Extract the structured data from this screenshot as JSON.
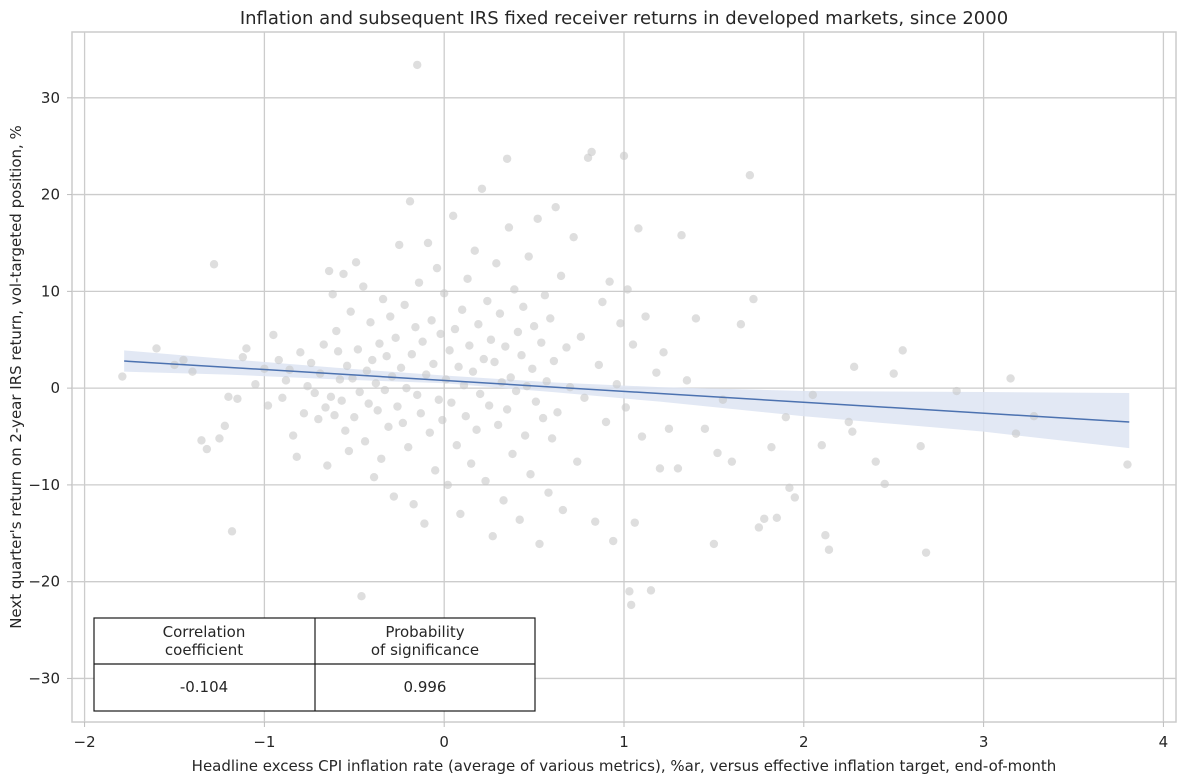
{
  "chart_data": {
    "type": "scatter",
    "title": "Inflation and subsequent IRS fixed receiver returns in developed markets, since 2000",
    "xlabel": "Headline excess CPI inflation rate (average of various metrics), %ar, versus effective inflation target, end-of-month",
    "ylabel": "Next quarter's return on 2-year IRS return, vol-targeted position, %",
    "xlim": [
      -2.07,
      4.07
    ],
    "ylim": [
      -34.5,
      36.8
    ],
    "xticks": [
      -2,
      -1,
      0,
      1,
      2,
      3,
      4
    ],
    "xtick_labels": [
      "−2",
      "−1",
      "0",
      "1",
      "2",
      "3",
      "4"
    ],
    "yticks": [
      -30,
      -20,
      -10,
      0,
      10,
      20,
      30
    ],
    "ytick_labels": [
      "−30",
      "−20",
      "−10",
      "0",
      "10",
      "20",
      "30"
    ],
    "grid": true,
    "colors": {
      "points": "#c8c8c8",
      "regression_line": "#4c72b0",
      "confidence_band": "#dde4f2",
      "grid": "#cccccc"
    },
    "regression": {
      "x": [
        -1.78,
        3.81
      ],
      "y": [
        2.8,
        -3.5
      ],
      "ci_upper": [
        [
          -1.78,
          3.9
        ],
        [
          -1.2,
          3.0
        ],
        [
          -0.6,
          2.1
        ],
        [
          0.0,
          1.3
        ],
        [
          0.6,
          0.6
        ],
        [
          1.2,
          0.1
        ],
        [
          2.0,
          -0.3
        ],
        [
          3.0,
          -0.4
        ],
        [
          3.81,
          -0.5
        ]
      ],
      "ci_lower": [
        [
          -1.78,
          1.7
        ],
        [
          -1.2,
          1.4
        ],
        [
          -0.6,
          0.9
        ],
        [
          0.0,
          0.5
        ],
        [
          0.6,
          -0.4
        ],
        [
          1.2,
          -1.4
        ],
        [
          2.0,
          -2.9
        ],
        [
          3.0,
          -4.5
        ],
        [
          3.81,
          -6.2
        ]
      ]
    },
    "series": [
      {
        "points": [
          [
            -1.79,
            1.2
          ],
          [
            -1.6,
            4.1
          ],
          [
            -1.5,
            2.4
          ],
          [
            -1.45,
            2.9
          ],
          [
            -1.4,
            1.7
          ],
          [
            -1.35,
            -5.4
          ],
          [
            -1.32,
            -6.3
          ],
          [
            -1.28,
            12.8
          ],
          [
            -1.25,
            -5.2
          ],
          [
            -1.22,
            -3.9
          ],
          [
            -1.2,
            -0.9
          ],
          [
            -1.18,
            -14.8
          ],
          [
            -1.15,
            -1.1
          ],
          [
            -1.12,
            3.2
          ],
          [
            -1.1,
            4.1
          ],
          [
            -1.05,
            0.4
          ],
          [
            -1.0,
            2.0
          ],
          [
            -0.98,
            -1.8
          ],
          [
            -0.95,
            5.5
          ],
          [
            -0.92,
            2.9
          ],
          [
            -0.9,
            -1.0
          ],
          [
            -0.88,
            0.8
          ],
          [
            -0.86,
            1.9
          ],
          [
            -0.84,
            -4.9
          ],
          [
            -0.82,
            -7.1
          ],
          [
            -0.8,
            3.7
          ],
          [
            -0.78,
            -2.6
          ],
          [
            -0.76,
            0.2
          ],
          [
            -0.74,
            2.6
          ],
          [
            -0.72,
            -0.5
          ],
          [
            -0.7,
            -3.2
          ],
          [
            -0.69,
            1.5
          ],
          [
            -0.67,
            4.5
          ],
          [
            -0.66,
            -2.0
          ],
          [
            -0.65,
            -8.0
          ],
          [
            -0.64,
            12.1
          ],
          [
            -0.63,
            -0.9
          ],
          [
            -0.62,
            9.7
          ],
          [
            -0.61,
            -2.8
          ],
          [
            -0.6,
            5.9
          ],
          [
            -0.59,
            3.8
          ],
          [
            -0.58,
            0.9
          ],
          [
            -0.57,
            -1.3
          ],
          [
            -0.56,
            11.8
          ],
          [
            -0.55,
            -4.4
          ],
          [
            -0.54,
            2.3
          ],
          [
            -0.53,
            -6.5
          ],
          [
            -0.52,
            7.9
          ],
          [
            -0.51,
            1.0
          ],
          [
            -0.5,
            -3.0
          ],
          [
            -0.49,
            13.0
          ],
          [
            -0.48,
            4.0
          ],
          [
            -0.47,
            -0.4
          ],
          [
            -0.46,
            -21.5
          ],
          [
            -0.45,
            10.5
          ],
          [
            -0.44,
            -5.5
          ],
          [
            -0.43,
            1.8
          ],
          [
            -0.42,
            -1.6
          ],
          [
            -0.41,
            6.8
          ],
          [
            -0.4,
            2.9
          ],
          [
            -0.39,
            -9.2
          ],
          [
            -0.38,
            0.5
          ],
          [
            -0.37,
            -2.3
          ],
          [
            -0.36,
            4.6
          ],
          [
            -0.35,
            -7.3
          ],
          [
            -0.34,
            9.2
          ],
          [
            -0.33,
            -0.2
          ],
          [
            -0.32,
            3.3
          ],
          [
            -0.31,
            -4.0
          ],
          [
            -0.3,
            7.4
          ],
          [
            -0.29,
            1.2
          ],
          [
            -0.28,
            -11.2
          ],
          [
            -0.27,
            5.2
          ],
          [
            -0.26,
            -1.9
          ],
          [
            -0.25,
            14.8
          ],
          [
            -0.24,
            2.1
          ],
          [
            -0.23,
            -3.6
          ],
          [
            -0.22,
            8.6
          ],
          [
            -0.21,
            0.0
          ],
          [
            -0.2,
            -6.1
          ],
          [
            -0.19,
            19.3
          ],
          [
            -0.18,
            3.5
          ],
          [
            -0.17,
            -12.0
          ],
          [
            -0.16,
            6.3
          ],
          [
            -0.15,
            -0.7
          ],
          [
            -0.14,
            10.9
          ],
          [
            -0.13,
            -2.6
          ],
          [
            -0.12,
            4.8
          ],
          [
            -0.11,
            -14.0
          ],
          [
            -0.1,
            1.4
          ],
          [
            -0.09,
            15.0
          ],
          [
            -0.08,
            -4.6
          ],
          [
            -0.07,
            7.0
          ],
          [
            -0.06,
            2.5
          ],
          [
            -0.05,
            -8.5
          ],
          [
            -0.04,
            12.4
          ],
          [
            -0.03,
            -1.2
          ],
          [
            -0.02,
            5.6
          ],
          [
            -0.01,
            -3.3
          ],
          [
            0.0,
            9.8
          ],
          [
            0.01,
            0.9
          ],
          [
            0.02,
            -10.0
          ],
          [
            0.03,
            3.9
          ],
          [
            0.04,
            -1.5
          ],
          [
            0.05,
            17.8
          ],
          [
            0.06,
            6.1
          ],
          [
            0.07,
            -5.9
          ],
          [
            0.08,
            2.2
          ],
          [
            0.09,
            -13.0
          ],
          [
            0.1,
            8.1
          ],
          [
            0.11,
            0.3
          ],
          [
            0.12,
            -2.9
          ],
          [
            0.13,
            11.3
          ],
          [
            0.14,
            4.4
          ],
          [
            0.15,
            -7.8
          ],
          [
            0.16,
            1.7
          ],
          [
            0.17,
            14.2
          ],
          [
            0.18,
            -4.3
          ],
          [
            0.19,
            6.6
          ],
          [
            0.2,
            -0.6
          ],
          [
            0.21,
            20.6
          ],
          [
            0.22,
            3.0
          ],
          [
            0.23,
            -9.6
          ],
          [
            0.24,
            9.0
          ],
          [
            0.25,
            -1.8
          ],
          [
            0.26,
            5.0
          ],
          [
            0.27,
            -15.3
          ],
          [
            0.28,
            2.7
          ],
          [
            0.29,
            12.9
          ],
          [
            0.3,
            -3.8
          ],
          [
            0.31,
            7.7
          ],
          [
            0.32,
            0.6
          ],
          [
            0.33,
            -11.6
          ],
          [
            0.34,
            4.3
          ],
          [
            0.35,
            -2.2
          ],
          [
            0.36,
            16.6
          ],
          [
            0.37,
            1.1
          ],
          [
            0.38,
            -6.8
          ],
          [
            0.39,
            10.2
          ],
          [
            0.4,
            -0.3
          ],
          [
            0.41,
            5.8
          ],
          [
            0.42,
            -13.6
          ],
          [
            0.43,
            3.4
          ],
          [
            0.44,
            8.4
          ],
          [
            0.45,
            -4.9
          ],
          [
            0.46,
            0.2
          ],
          [
            0.47,
            13.6
          ],
          [
            0.48,
            -8.9
          ],
          [
            0.49,
            2.0
          ],
          [
            0.5,
            6.4
          ],
          [
            0.51,
            -1.4
          ],
          [
            0.52,
            17.5
          ],
          [
            0.53,
            -16.1
          ],
          [
            0.54,
            4.7
          ],
          [
            0.55,
            -3.1
          ],
          [
            0.56,
            9.6
          ],
          [
            0.57,
            0.7
          ],
          [
            0.58,
            -10.8
          ],
          [
            0.59,
            7.2
          ],
          [
            0.6,
            -5.2
          ],
          [
            0.61,
            2.8
          ],
          [
            0.62,
            18.7
          ],
          [
            0.63,
            -2.5
          ],
          [
            0.65,
            11.6
          ],
          [
            0.66,
            -12.6
          ],
          [
            0.68,
            4.2
          ],
          [
            0.7,
            0.1
          ],
          [
            0.72,
            15.6
          ],
          [
            0.74,
            -7.6
          ],
          [
            0.76,
            5.3
          ],
          [
            0.78,
            -1.0
          ],
          [
            0.8,
            23.8
          ],
          [
            0.82,
            24.4
          ],
          [
            0.84,
            -13.8
          ],
          [
            0.86,
            2.4
          ],
          [
            0.88,
            8.9
          ],
          [
            0.9,
            -3.5
          ],
          [
            0.92,
            11.0
          ],
          [
            0.94,
            -15.8
          ],
          [
            0.96,
            0.4
          ],
          [
            0.98,
            6.7
          ],
          [
            1.0,
            24.0
          ],
          [
            1.01,
            -2.0
          ],
          [
            1.02,
            10.2
          ],
          [
            1.03,
            -21.0
          ],
          [
            1.04,
            -22.4
          ],
          [
            1.05,
            4.5
          ],
          [
            1.06,
            -13.9
          ],
          [
            1.08,
            16.5
          ],
          [
            1.1,
            -5.0
          ],
          [
            1.12,
            7.4
          ],
          [
            1.15,
            -20.9
          ],
          [
            1.18,
            1.6
          ],
          [
            1.2,
            -8.3
          ],
          [
            1.22,
            3.7
          ],
          [
            1.25,
            -4.2
          ],
          [
            1.3,
            -8.3
          ],
          [
            1.32,
            15.8
          ],
          [
            1.35,
            0.8
          ],
          [
            1.4,
            7.2
          ],
          [
            1.45,
            -4.2
          ],
          [
            1.5,
            -16.1
          ],
          [
            1.52,
            -6.7
          ],
          [
            1.55,
            -1.2
          ],
          [
            1.6,
            -7.6
          ],
          [
            1.65,
            6.6
          ],
          [
            1.7,
            22.0
          ],
          [
            1.72,
            9.2
          ],
          [
            1.75,
            -14.4
          ],
          [
            1.78,
            -13.5
          ],
          [
            1.82,
            -6.1
          ],
          [
            1.85,
            -13.4
          ],
          [
            1.9,
            -3.0
          ],
          [
            1.92,
            -10.3
          ],
          [
            1.95,
            -11.3
          ],
          [
            2.05,
            -0.7
          ],
          [
            2.1,
            -5.9
          ],
          [
            2.12,
            -15.2
          ],
          [
            2.14,
            -16.7
          ],
          [
            2.25,
            -3.5
          ],
          [
            2.27,
            -4.5
          ],
          [
            2.28,
            2.2
          ],
          [
            2.4,
            -7.6
          ],
          [
            2.45,
            -9.9
          ],
          [
            2.5,
            1.5
          ],
          [
            2.55,
            3.9
          ],
          [
            2.65,
            -6.0
          ],
          [
            2.68,
            -17.0
          ],
          [
            2.85,
            -0.3
          ],
          [
            3.15,
            1.0
          ],
          [
            3.18,
            -4.7
          ],
          [
            3.28,
            -2.9
          ],
          [
            3.8,
            -7.9
          ],
          [
            -0.15,
            33.4
          ],
          [
            0.35,
            23.7
          ]
        ]
      }
    ],
    "table": {
      "headers": [
        "Correlation\ncoefficient",
        "Probability\nof significance"
      ],
      "header_lines": [
        [
          "Correlation",
          "coefficient"
        ],
        [
          "Probability",
          "of significance"
        ]
      ],
      "values": [
        "-0.104",
        "0.996"
      ]
    }
  }
}
